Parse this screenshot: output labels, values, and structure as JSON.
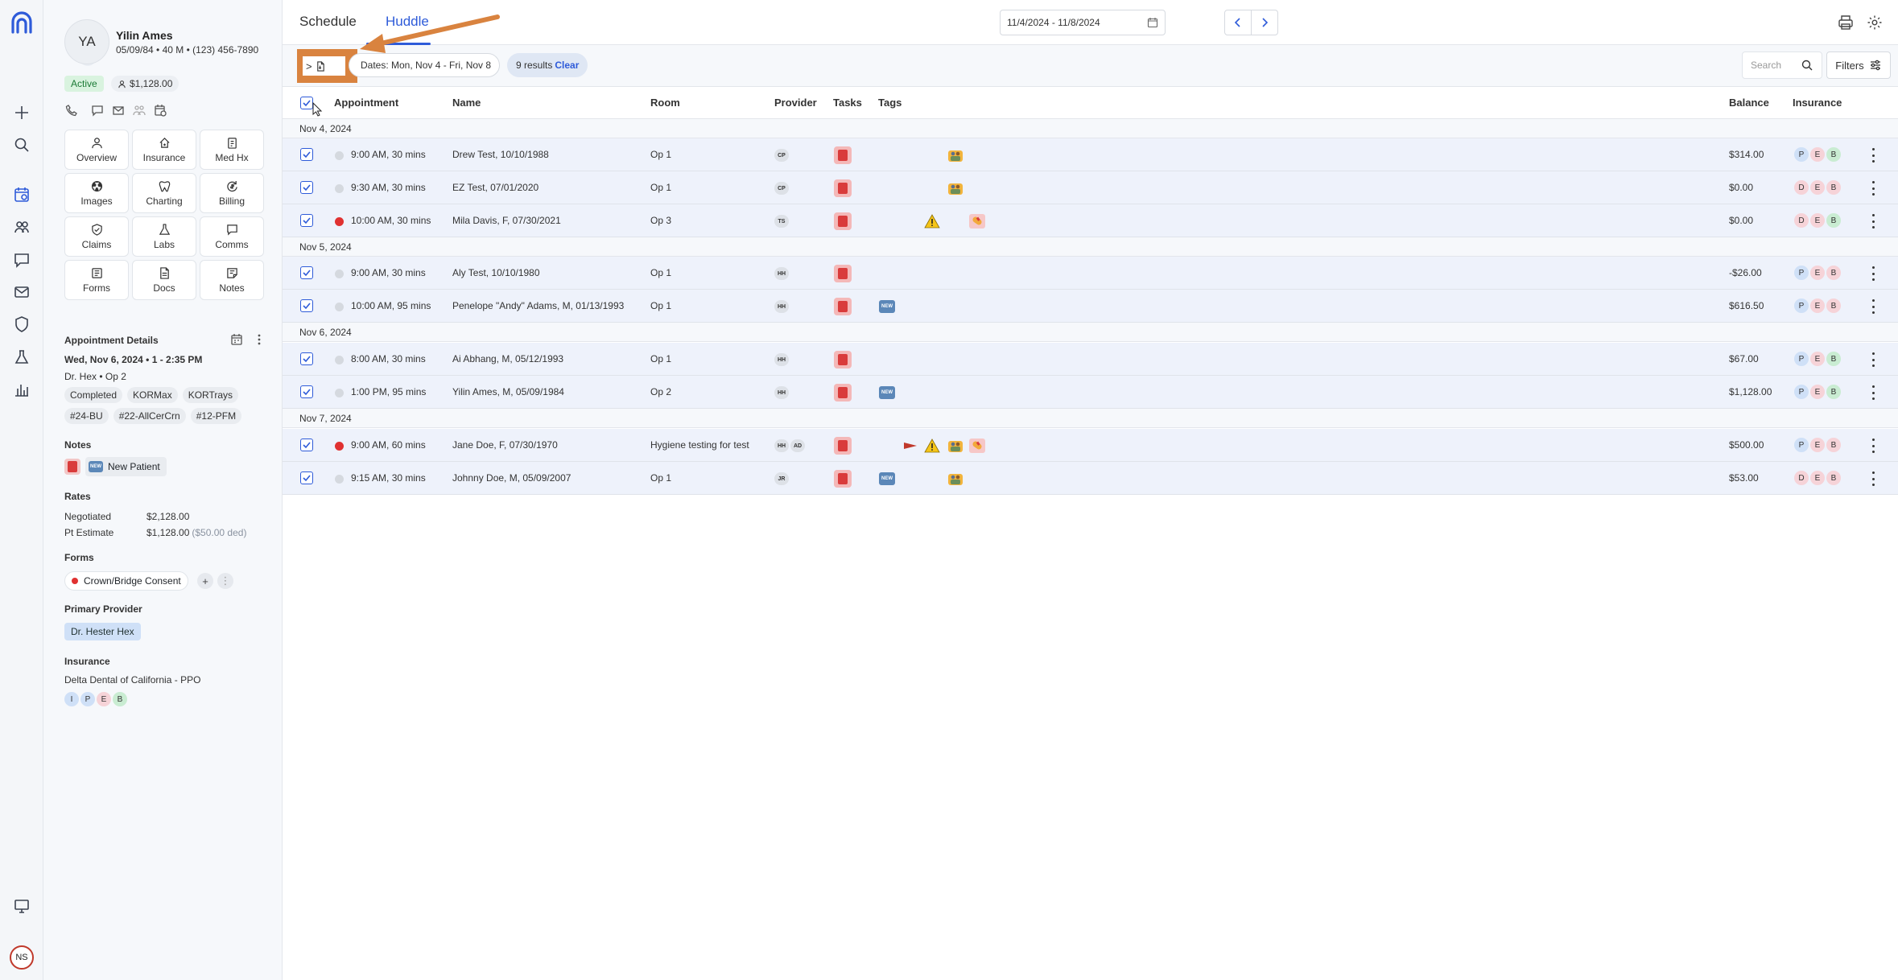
{
  "rail": {
    "user_initials": "NS"
  },
  "patient": {
    "initials": "YA",
    "name": "Yilin Ames",
    "meta": "05/09/84 • 40 M • (123) 456-7890",
    "status": "Active",
    "balance": "$1,128.00",
    "nav": [
      "Overview",
      "Insurance",
      "Med Hx",
      "Images",
      "Charting",
      "Billing",
      "Claims",
      "Labs",
      "Comms",
      "Forms",
      "Docs",
      "Notes"
    ],
    "appointment_details": {
      "title": "Appointment Details",
      "when": "Wed, Nov 6, 2024 • 1 - 2:35 PM",
      "where": "Dr. Hex • Op 2",
      "chips": [
        "Completed",
        "KORMax",
        "KORTrays",
        "#24-BU",
        "#22-AllCerCrn",
        "#12-PFM"
      ]
    },
    "notes": {
      "title": "Notes",
      "new_patient": "New Patient",
      "new_label": "NEW"
    },
    "rates": {
      "title": "Rates",
      "negotiated_label": "Negotiated",
      "negotiated_value": "$2,128.00",
      "estimate_label": "Pt Estimate",
      "estimate_value": "$1,128.00",
      "estimate_deductible": "($50.00 ded)"
    },
    "forms": {
      "title": "Forms",
      "item": "Crown/Bridge Consent"
    },
    "primary_provider": {
      "title": "Primary Provider",
      "name": "Dr. Hester Hex"
    },
    "insurance": {
      "title": "Insurance",
      "plan": "Delta Dental of California - PPO",
      "badges": [
        "I",
        "P",
        "E",
        "B"
      ]
    }
  },
  "topbar": {
    "tabs": [
      "Schedule",
      "Huddle"
    ],
    "active_tab": "Huddle",
    "date_range": "11/4/2024 - 11/8/2024"
  },
  "filterbar": {
    "toggle_label": ">",
    "dates_chip": "Dates: Mon, Nov 4 - Fri, Nov 8",
    "results": "9 results",
    "clear": "Clear",
    "search_placeholder": "Search",
    "filters_label": "Filters"
  },
  "table": {
    "headers": {
      "appointment": "Appointment",
      "name": "Name",
      "room": "Room",
      "provider": "Provider",
      "tasks": "Tasks",
      "tags": "Tags",
      "balance": "Balance",
      "insurance": "Insurance"
    },
    "groups": [
      {
        "date": "Nov 4, 2024",
        "rows": [
          {
            "time": "9:00 AM, 30 mins",
            "name": "Drew Test, 10/10/1988",
            "room": "Op 1",
            "providers": [
              "CP"
            ],
            "balance": "$314.00",
            "ins": [
              "P",
              "E",
              "B"
            ],
            "status": "grey"
          },
          {
            "time": "9:30 AM, 30 mins",
            "name": "EZ Test, 07/01/2020",
            "room": "Op 1",
            "providers": [
              "CP"
            ],
            "balance": "$0.00",
            "ins": [
              "D",
              "E",
              "B"
            ],
            "status": "grey"
          },
          {
            "time": "10:00 AM, 30 mins",
            "name": "Mila Davis, F, 07/30/2021",
            "room": "Op 3",
            "providers": [
              "TS"
            ],
            "balance": "$0.00",
            "ins": [
              "D",
              "E",
              "B"
            ],
            "status": "red"
          }
        ]
      },
      {
        "date": "Nov 5, 2024",
        "rows": [
          {
            "time": "9:00 AM, 30 mins",
            "name": "Aly Test, 10/10/1980",
            "room": "Op 1",
            "providers": [
              "HH"
            ],
            "balance": "-$26.00",
            "ins": [
              "P",
              "E",
              "B"
            ],
            "status": "grey"
          },
          {
            "time": "10:00 AM, 95 mins",
            "name": "Penelope \"Andy\" Adams, M, 01/13/1993",
            "room": "Op 1",
            "providers": [
              "HH"
            ],
            "balance": "$616.50",
            "ins": [
              "P",
              "E",
              "B"
            ],
            "status": "grey"
          }
        ]
      },
      {
        "date": "Nov 6, 2024",
        "rows": [
          {
            "time": "8:00 AM, 30 mins",
            "name": "Ai Abhang, M, 05/12/1993",
            "room": "Op 1",
            "providers": [
              "HH"
            ],
            "balance": "$67.00",
            "ins": [
              "P",
              "E",
              "B"
            ],
            "status": "grey"
          },
          {
            "time": "1:00 PM, 95 mins",
            "name": "Yilin Ames, M, 05/09/1984",
            "room": "Op 2",
            "providers": [
              "HH"
            ],
            "balance": "$1,128.00",
            "ins": [
              "P",
              "E",
              "B"
            ],
            "status": "grey"
          }
        ]
      },
      {
        "date": "Nov 7, 2024",
        "rows": [
          {
            "time": "9:00 AM, 60 mins",
            "name": "Jane Doe, F, 07/30/1970",
            "room": "Hygiene testing for test",
            "providers": [
              "HH",
              "AD"
            ],
            "balance": "$500.00",
            "ins": [
              "P",
              "E",
              "B"
            ],
            "status": "red"
          },
          {
            "time": "9:15 AM, 30 mins",
            "name": "Johnny Doe, M, 05/09/2007",
            "room": "Op 1",
            "providers": [
              "JR"
            ],
            "balance": "$53.00",
            "ins": [
              "D",
              "E",
              "B"
            ],
            "status": "grey"
          }
        ]
      }
    ]
  },
  "colors": {
    "accent": "#2e5bd9",
    "annotation": "#d9833f",
    "row_bg": "#eef2fb"
  }
}
